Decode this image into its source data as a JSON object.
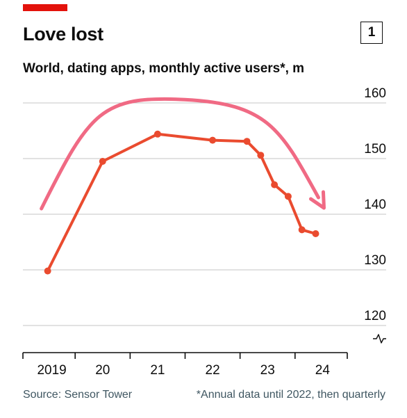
{
  "header": {
    "title": "Love lost",
    "chart_number": "1",
    "subtitle": "World, dating apps, monthly active users*, m"
  },
  "footer": {
    "source": "Source: Sensor Tower",
    "note": "*Annual data until 2022, then quarterly"
  },
  "colors": {
    "series": "#ea4b2f",
    "trend_arrow": "#f06a84",
    "gridline": "#c4c4c4",
    "axis": "#0d0d0d",
    "accent_tab": "#e3120b",
    "footer_text": "#3f5661"
  },
  "chart_data": {
    "type": "line",
    "title": "Love lost",
    "subtitle": "World, dating apps, monthly active users*, m",
    "xlabel": "",
    "ylabel": "",
    "x_tick_labels": [
      "2019",
      "20",
      "21",
      "22",
      "23",
      "24"
    ],
    "x_ticks": [
      2019,
      2020,
      2021,
      2022,
      2023,
      2024
    ],
    "xlim": [
      2018.55,
      2024.45
    ],
    "y_ticks": [
      120,
      130,
      140,
      150,
      160
    ],
    "ylim": [
      120,
      160
    ],
    "y_axis_side": "right",
    "y_axis_break": true,
    "grid": true,
    "legend": "none",
    "series": [
      {
        "x": [
          2019,
          2020,
          2021,
          2022,
          2022.625,
          2022.875,
          2023.125,
          2023.375,
          2023.625,
          2023.875
        ],
        "values": [
          129.8,
          149.5,
          154.4,
          153.3,
          153.1,
          150.6,
          145.3,
          143.2,
          137.2,
          136.5
        ]
      }
    ],
    "annotations": [
      {
        "type": "trend-arrow",
        "shape": "arch",
        "direction": "rising then falling"
      }
    ]
  }
}
